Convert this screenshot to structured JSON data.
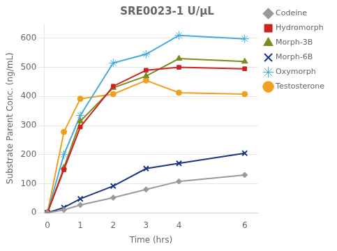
{
  "chart_data": {
    "type": "line",
    "title": "SRE0023-1 U/μL",
    "xlabel": "Time (hrs)",
    "ylabel": "Substrate Parent Conc. (ng/mL)",
    "x": [
      0,
      0.5,
      1,
      2,
      3,
      4,
      6
    ],
    "series": [
      {
        "name": "Codeine",
        "color": "#999999",
        "marker": "diamond",
        "values": [
          0,
          10,
          27,
          52,
          80,
          108,
          130
        ]
      },
      {
        "name": "Hydromorph",
        "color": "#cc2222",
        "marker": "square",
        "values": [
          0,
          148,
          295,
          435,
          490,
          500,
          495
        ]
      },
      {
        "name": "Morph-3B",
        "color": "#7a8c1e",
        "marker": "triangle",
        "values": [
          0,
          155,
          315,
          430,
          470,
          530,
          520
        ]
      },
      {
        "name": "Morph-6B",
        "color": "#1a3580",
        "marker": "x",
        "values": [
          0,
          18,
          48,
          92,
          152,
          170,
          205
        ]
      },
      {
        "name": "Oxymorph",
        "color": "#44aadd",
        "marker": "star",
        "values": [
          0,
          200,
          335,
          515,
          545,
          610,
          598
        ]
      },
      {
        "name": "Testosterone",
        "color": "#f0a020",
        "marker": "circle",
        "values": [
          0,
          278,
          392,
          408,
          455,
          413,
          408
        ]
      }
    ],
    "xlim": [
      -0.1,
      6.4
    ],
    "xticks": [
      0,
      1,
      2,
      3,
      4,
      6
    ],
    "ylim": [
      0,
      650
    ],
    "yticks": [
      0,
      100,
      200,
      300,
      400,
      500,
      600
    ],
    "grid": "y",
    "legend": "right"
  }
}
